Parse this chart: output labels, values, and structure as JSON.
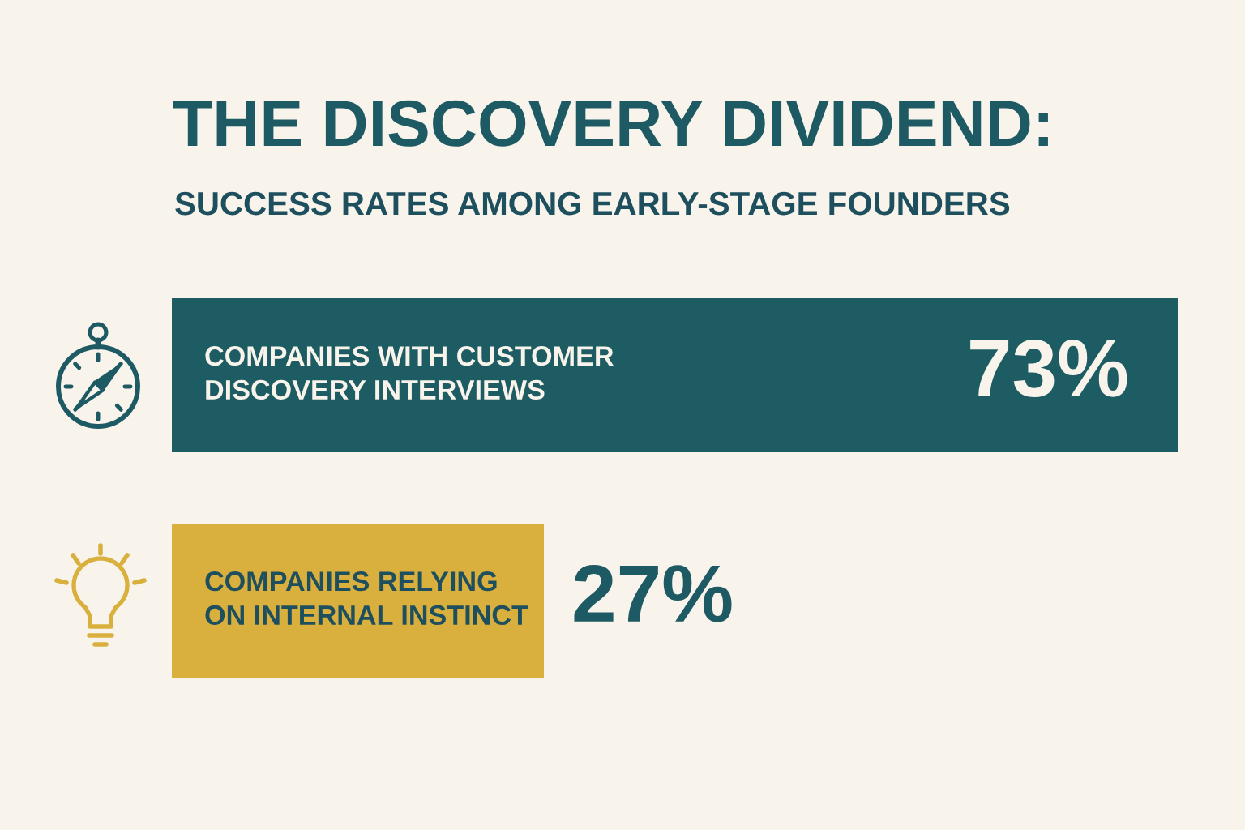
{
  "chart_data": {
    "type": "bar",
    "orientation": "horizontal",
    "title": "THE DISCOVERY DIVIDEND:",
    "subtitle": "SUCCESS RATES AMONG EARLY-STAGE FOUNDERS",
    "categories": [
      "COMPANIES WITH CUSTOMER\nDISCOVERY INTERVIEWS",
      "COMPANIES RELYING\nON INTERNAL INSTINCT"
    ],
    "values": [
      73,
      27
    ],
    "colors": [
      "#1e5c63",
      "#d9b03e"
    ],
    "value_labels": [
      "73%",
      "27%"
    ],
    "tick_labels": "y"
  }
}
